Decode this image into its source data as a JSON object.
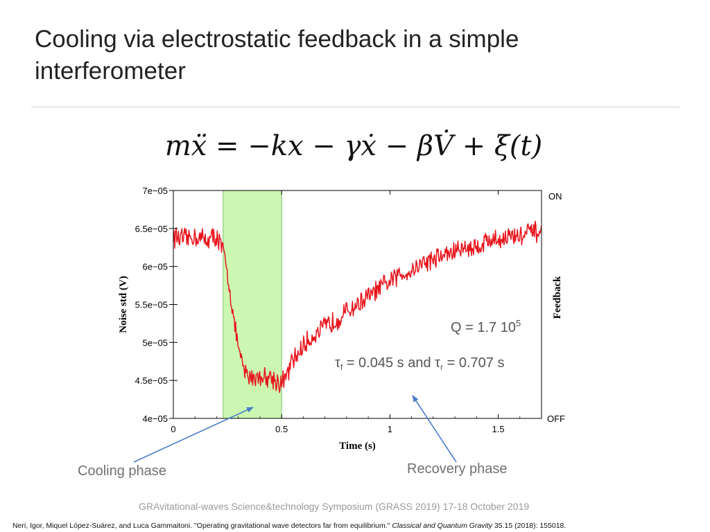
{
  "slide": {
    "title": "Cooling via electrostatic feedback in a simple interferometer",
    "equation": "mẍ = −kx − γẋ − βV̇ + ξ(t)"
  },
  "annotations": {
    "cooling_phase": "Cooling phase",
    "recovery_phase": "Recovery phase",
    "q_text": "Q = 1.7 10",
    "q_exp": "5",
    "tau_f_sym": "τ",
    "tau_f_sub": "f",
    "tau_mid": " = 0.045 s and ",
    "tau_r_sym": "τ",
    "tau_r_sub": "r",
    "tau_end": " = 0.707 s"
  },
  "footer": {
    "conference": "GRAvitational-waves Science&technology Symposium (GRASS 2019) 17-18 October 2019",
    "citation_authors": "Neri, Igor, Miquel López-Suárez, and Luca Gammaitoni. \"Operating gravitational wave detectors far from equilibrium.\" ",
    "citation_journal": "Classical and Quantum Gravity",
    "citation_rest": " 35.15 (2018): 155018."
  },
  "colors": {
    "trace": "#e8141c",
    "cooling_band_fill": "#ccf7b3",
    "cooling_band_edge": "#7fbf6a",
    "arrow": "#4a7cc9"
  },
  "chart_data": {
    "type": "line",
    "xlabel": "Time (s)",
    "ylabel": "Noise std (V)",
    "y2label": "Feedback",
    "xlim": [
      0,
      1.7
    ],
    "ylim": [
      4e-05,
      7e-05
    ],
    "xticks": [
      0,
      0.5,
      1,
      1.5
    ],
    "xtick_labels": [
      "0",
      "0.5",
      "1",
      "1.5"
    ],
    "yticks": [
      4e-05,
      4.5e-05,
      5e-05,
      5.5e-05,
      6e-05,
      6.5e-05,
      7e-05
    ],
    "ytick_labels": [
      "4e−05",
      "4.5e−05",
      "5e−05",
      "5.5e−05",
      "6e−05",
      "6.5e−05",
      "7e−05"
    ],
    "y2_labels": {
      "top": "ON",
      "bottom": "OFF"
    },
    "cooling_span": [
      0.23,
      0.5
    ],
    "series": [
      {
        "x": [
          0,
          0.05,
          0.1,
          0.15,
          0.2,
          0.23,
          0.25,
          0.27,
          0.29,
          0.31,
          0.33,
          0.35,
          0.4,
          0.45,
          0.5,
          0.53,
          0.55,
          0.6,
          0.65,
          0.7,
          0.75,
          0.8,
          0.85,
          0.9,
          0.95,
          1.0,
          1.05,
          1.1,
          1.15,
          1.2,
          1.25,
          1.3,
          1.35,
          1.4,
          1.45,
          1.5,
          1.55,
          1.6,
          1.65,
          1.7
        ],
        "y": [
          6.4e-05,
          6.35e-05,
          6.4e-05,
          6.35e-05,
          6.4e-05,
          6.2e-05,
          5.9e-05,
          5.5e-05,
          5.1e-05,
          4.8e-05,
          4.6e-05,
          4.55e-05,
          4.55e-05,
          4.55e-05,
          4.45e-05,
          4.6e-05,
          4.75e-05,
          4.95e-05,
          5.1e-05,
          5.2e-05,
          5.3e-05,
          5.4e-05,
          5.5e-05,
          5.6e-05,
          5.7e-05,
          5.8e-05,
          5.9e-05,
          5.95e-05,
          6.05e-05,
          6.1e-05,
          6.15e-05,
          6.2e-05,
          6.25e-05,
          6.25e-05,
          6.35e-05,
          6.35e-05,
          6.4e-05,
          6.4e-05,
          6.45e-05,
          6.45e-05
        ]
      }
    ]
  }
}
